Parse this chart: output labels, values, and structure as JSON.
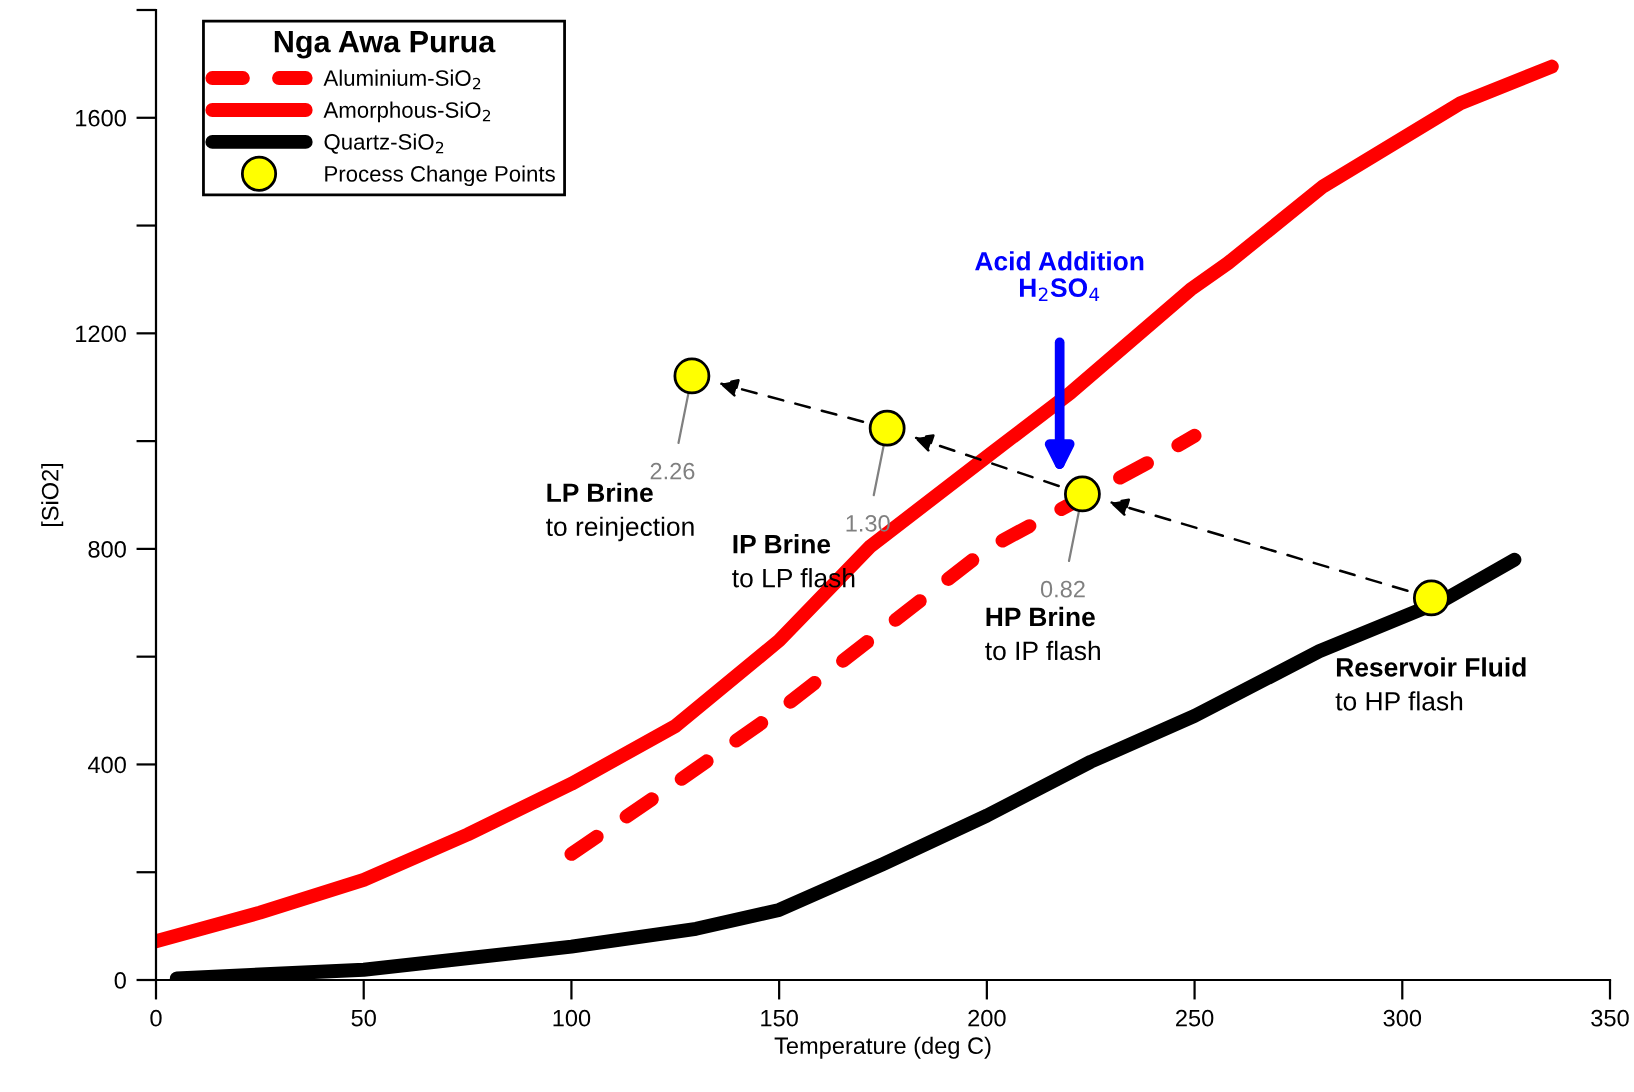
{
  "chart_data": {
    "type": "line",
    "xlabel": "Temperature (deg C)",
    "ylabel": "[SiO2]",
    "xlim": [
      0,
      350
    ],
    "xticks": [
      0,
      50,
      100,
      150,
      200,
      250,
      300,
      350
    ],
    "ylim": [
      0,
      1800
    ],
    "yticks": [
      0,
      {
        "value": 200,
        "label": null
      },
      400,
      {
        "value": 600,
        "label": null
      },
      800,
      {
        "value": 1000,
        "label": null
      },
      1200,
      {
        "value": 1400,
        "label": null
      },
      1600,
      {
        "value": 1800,
        "label": null
      }
    ],
    "grid": false,
    "legend": "top left",
    "legend_title": "Nga Awa Purua",
    "series": [
      {
        "name": "Aluminium-SiO$_{2}$",
        "color": "#ff0000",
        "line_style": "dashed",
        "x": [
          100,
          125,
          150,
          175,
          200,
          240,
          250
        ],
        "values": [
          234,
          365,
          500,
          650,
          800,
          965,
          1010
        ]
      },
      {
        "name": "Amorphous-SiO$_{2}$",
        "color": "#ff0000",
        "line_style": "solid",
        "x": [
          0,
          25,
          50,
          75,
          100,
          125,
          150,
          172,
          201,
          220,
          249,
          258,
          281,
          314,
          336
        ],
        "values": [
          72,
          125,
          186,
          270,
          364,
          471,
          630,
          805,
          977,
          1089,
          1281,
          1330,
          1473,
          1627,
          1695
        ]
      },
      {
        "name": "Quartz-SiO$_{2}$",
        "color": "#000000",
        "line_style": "solid",
        "x": [
          5,
          50,
          100,
          130,
          150,
          175,
          200,
          225,
          250,
          280,
          310,
          327
        ],
        "values": [
          3,
          19,
          62,
          95,
          130,
          215,
          305,
          405,
          490,
          610,
          705,
          780
        ]
      },
      {
        "name": "Process Change Points",
        "type": "scatter",
        "marker": "circle",
        "color": "#ffff00",
        "x": [
          129,
          176,
          223,
          307
        ],
        "values": [
          1121,
          1024,
          902,
          709
        ]
      }
    ],
    "annotations": [
      "LP Brine\nto reinjection",
      "IP Brine\nto LP flash",
      "HP Brine\nto IP flash",
      "Reservoir Fluid\nto HP flash",
      {
        "text": "2.26",
        "x": 129,
        "y": 1121
      },
      {
        "text": "1.30",
        "x": 176,
        "y": 1024
      },
      {
        "text": "0.82",
        "x": 223,
        "y": 902
      },
      "Acid Addition\nH$_{2}$SO$_{4}$"
    ]
  }
}
